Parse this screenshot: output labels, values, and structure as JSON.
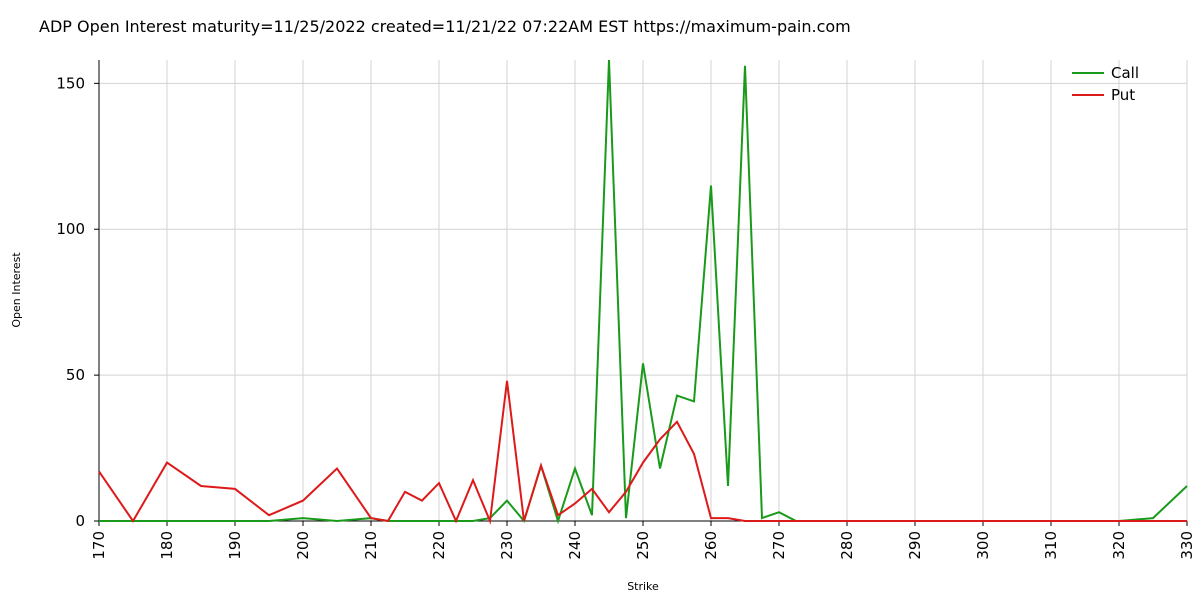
{
  "title": "ADP Open Interest maturity=11/25/2022 created=11/21/22 07:22AM EST https://maximum-pain.com",
  "chart_data": {
    "type": "line",
    "xlabel": "Strike",
    "ylabel": "Open Interest",
    "xlim": [
      170,
      330
    ],
    "ylim": [
      0,
      158
    ],
    "x_ticks": [
      170,
      180,
      190,
      200,
      210,
      220,
      230,
      240,
      250,
      260,
      270,
      280,
      290,
      300,
      310,
      320,
      330
    ],
    "y_ticks": [
      0,
      50,
      100,
      150
    ],
    "grid": true,
    "legend_position": "top-right",
    "series": [
      {
        "name": "Call",
        "color": "#1a9a1a",
        "points": [
          [
            170,
            0
          ],
          [
            175,
            0
          ],
          [
            180,
            0
          ],
          [
            185,
            0
          ],
          [
            190,
            0
          ],
          [
            195,
            0
          ],
          [
            200,
            1
          ],
          [
            205,
            0
          ],
          [
            210,
            1
          ],
          [
            212.5,
            0
          ],
          [
            215,
            0
          ],
          [
            217.5,
            0
          ],
          [
            220,
            0
          ],
          [
            222.5,
            0
          ],
          [
            225,
            0
          ],
          [
            227.5,
            1
          ],
          [
            230,
            7
          ],
          [
            232.5,
            0
          ],
          [
            235,
            19
          ],
          [
            237.5,
            0
          ],
          [
            240,
            18
          ],
          [
            242.5,
            2
          ],
          [
            245,
            158
          ],
          [
            247.5,
            1
          ],
          [
            250,
            54
          ],
          [
            252.5,
            18
          ],
          [
            255,
            43
          ],
          [
            257.5,
            41
          ],
          [
            260,
            115
          ],
          [
            262.5,
            12
          ],
          [
            265,
            156
          ],
          [
            267.5,
            1
          ],
          [
            270,
            3
          ],
          [
            272.5,
            0
          ],
          [
            275,
            0
          ],
          [
            280,
            0
          ],
          [
            285,
            0
          ],
          [
            290,
            0
          ],
          [
            295,
            0
          ],
          [
            300,
            0
          ],
          [
            305,
            0
          ],
          [
            310,
            0
          ],
          [
            315,
            0
          ],
          [
            320,
            0
          ],
          [
            325,
            1
          ],
          [
            330,
            12
          ]
        ]
      },
      {
        "name": "Put",
        "color": "#dd1a1a",
        "points": [
          [
            170,
            17
          ],
          [
            175,
            0
          ],
          [
            180,
            20
          ],
          [
            185,
            12
          ],
          [
            190,
            11
          ],
          [
            195,
            2
          ],
          [
            200,
            7
          ],
          [
            205,
            18
          ],
          [
            210,
            1
          ],
          [
            212.5,
            0
          ],
          [
            215,
            10
          ],
          [
            217.5,
            7
          ],
          [
            220,
            13
          ],
          [
            222.5,
            0
          ],
          [
            225,
            14
          ],
          [
            227.5,
            0
          ],
          [
            230,
            48
          ],
          [
            232.5,
            0
          ],
          [
            235,
            19
          ],
          [
            237.5,
            2
          ],
          [
            240,
            6
          ],
          [
            242.5,
            11
          ],
          [
            245,
            3
          ],
          [
            247.5,
            10
          ],
          [
            250,
            20
          ],
          [
            252.5,
            28
          ],
          [
            255,
            34
          ],
          [
            257.5,
            23
          ],
          [
            260,
            1
          ],
          [
            262.5,
            1
          ],
          [
            265,
            0
          ],
          [
            267.5,
            0
          ],
          [
            270,
            0
          ],
          [
            275,
            0
          ],
          [
            280,
            0
          ],
          [
            285,
            0
          ],
          [
            290,
            0
          ],
          [
            295,
            0
          ],
          [
            300,
            0
          ],
          [
            305,
            0
          ],
          [
            310,
            0
          ],
          [
            315,
            0
          ],
          [
            320,
            0
          ],
          [
            325,
            0
          ],
          [
            330,
            0
          ]
        ]
      }
    ]
  }
}
